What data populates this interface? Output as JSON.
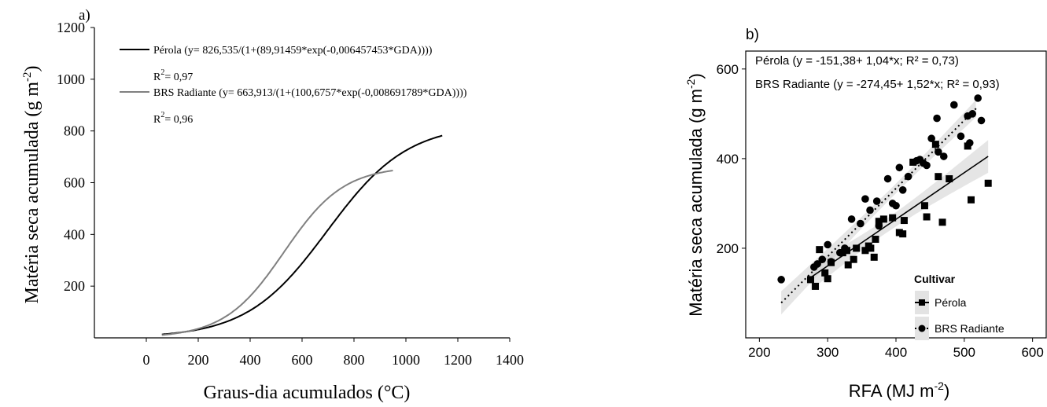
{
  "chart_data": [
    {
      "panel": "a)",
      "type": "line",
      "xlabel": "Graus-dia acumulados (°C)",
      "ylabel": "Matéria seca acumulada (g m",
      "ylabel_sup": "-2",
      "ylabel_close": ")",
      "xlim": [
        -200,
        1400
      ],
      "ylim": [
        0,
        1200
      ],
      "xticks": [
        "0",
        "200",
        "400",
        "600",
        "800",
        "1000",
        "1200",
        "1400"
      ],
      "yticks": [
        "200",
        "400",
        "600",
        "800",
        "1000",
        "1200"
      ],
      "legend": [
        {
          "series": "Pérola",
          "text": "Pérola (y= 826,535/(1+(89,91459*exp(-0,006457453*GDA))))",
          "r2_prefix": "R",
          "r2_sup": "2",
          "r2_suffix": "= 0,97",
          "color": "#000000"
        },
        {
          "series": "BRS Radiante",
          "text": "BRS Radiante (y= 663,913/(1+(100,6757*exp(-0,008691789*GDA))))",
          "r2_prefix": "R",
          "r2_sup": "2",
          "r2_suffix": "= 0,96",
          "color": "#808080"
        }
      ],
      "series": [
        {
          "name": "Pérola",
          "color": "#000000",
          "a": 826.535,
          "b": 89.91459,
          "k": 0.006457453,
          "x_range": [
            60,
            1140
          ]
        },
        {
          "name": "BRS Radiante",
          "color": "#808080",
          "a": 663.913,
          "b": 100.6757,
          "k": 0.008691789,
          "x_range": [
            60,
            950
          ]
        }
      ]
    },
    {
      "panel": "b)",
      "type": "scatter",
      "xlabel": "RFA (MJ m",
      "xlabel_sup": "-2",
      "xlabel_close": ")",
      "ylabel": "Matéria seca acumulada (g m",
      "ylabel_sup": "-2",
      "ylabel_close": ")",
      "xlim": [
        180,
        620
      ],
      "ylim": [
        0,
        640
      ],
      "xticks": [
        200,
        300,
        400,
        500,
        600
      ],
      "yticks": [
        200,
        400,
        600
      ],
      "equations": [
        "Pérola (y = -151,38+ 1,04*x; R² = 0,73)",
        "BRS Radiante (y = -274,45+ 1,52*x; R² = 0,93)"
      ],
      "legend_title": "Cultivar",
      "legend_items": [
        "Pérola",
        "BRS Radiante"
      ],
      "series": [
        {
          "name": "Pérola",
          "marker": "square",
          "line": "solid",
          "intercept": -151.38,
          "slope": 1.04,
          "x_range": [
            275,
            535
          ],
          "points": [
            [
              275,
              130
            ],
            [
              282,
              115
            ],
            [
              288,
              197
            ],
            [
              296,
              145
            ],
            [
              300,
              132
            ],
            [
              305,
              168
            ],
            [
              322,
              190
            ],
            [
              328,
              195
            ],
            [
              330,
              163
            ],
            [
              338,
              175
            ],
            [
              342,
              200
            ],
            [
              355,
              195
            ],
            [
              360,
              205
            ],
            [
              363,
              200
            ],
            [
              368,
              180
            ],
            [
              370,
              220
            ],
            [
              375,
              260
            ],
            [
              382,
              265
            ],
            [
              395,
              268
            ],
            [
              405,
              235
            ],
            [
              410,
              232
            ],
            [
              412,
              262
            ],
            [
              425,
              392
            ],
            [
              442,
              295
            ],
            [
              445,
              270
            ],
            [
              458,
              432
            ],
            [
              462,
              360
            ],
            [
              468,
              258
            ],
            [
              478,
              355
            ],
            [
              505,
              428
            ],
            [
              510,
              308
            ],
            [
              535,
              345
            ]
          ]
        },
        {
          "name": "BRS Radiante",
          "marker": "circle",
          "line": "dotted",
          "intercept": -274.45,
          "slope": 1.52,
          "x_range": [
            232,
            520
          ],
          "points": [
            [
              232,
              130
            ],
            [
              280,
              158
            ],
            [
              285,
              165
            ],
            [
              292,
              175
            ],
            [
              300,
              208
            ],
            [
              305,
              170
            ],
            [
              318,
              190
            ],
            [
              325,
              200
            ],
            [
              335,
              265
            ],
            [
              348,
              255
            ],
            [
              355,
              310
            ],
            [
              362,
              285
            ],
            [
              372,
              305
            ],
            [
              375,
              250
            ],
            [
              388,
              355
            ],
            [
              395,
              300
            ],
            [
              400,
              295
            ],
            [
              405,
              380
            ],
            [
              410,
              330
            ],
            [
              418,
              360
            ],
            [
              430,
              395
            ],
            [
              435,
              398
            ],
            [
              440,
              390
            ],
            [
              445,
              385
            ],
            [
              452,
              445
            ],
            [
              460,
              490
            ],
            [
              462,
              415
            ],
            [
              470,
              405
            ],
            [
              485,
              520
            ],
            [
              495,
              450
            ],
            [
              505,
              495
            ],
            [
              508,
              435
            ],
            [
              512,
              500
            ],
            [
              520,
              535
            ],
            [
              525,
              485
            ]
          ]
        }
      ]
    }
  ]
}
